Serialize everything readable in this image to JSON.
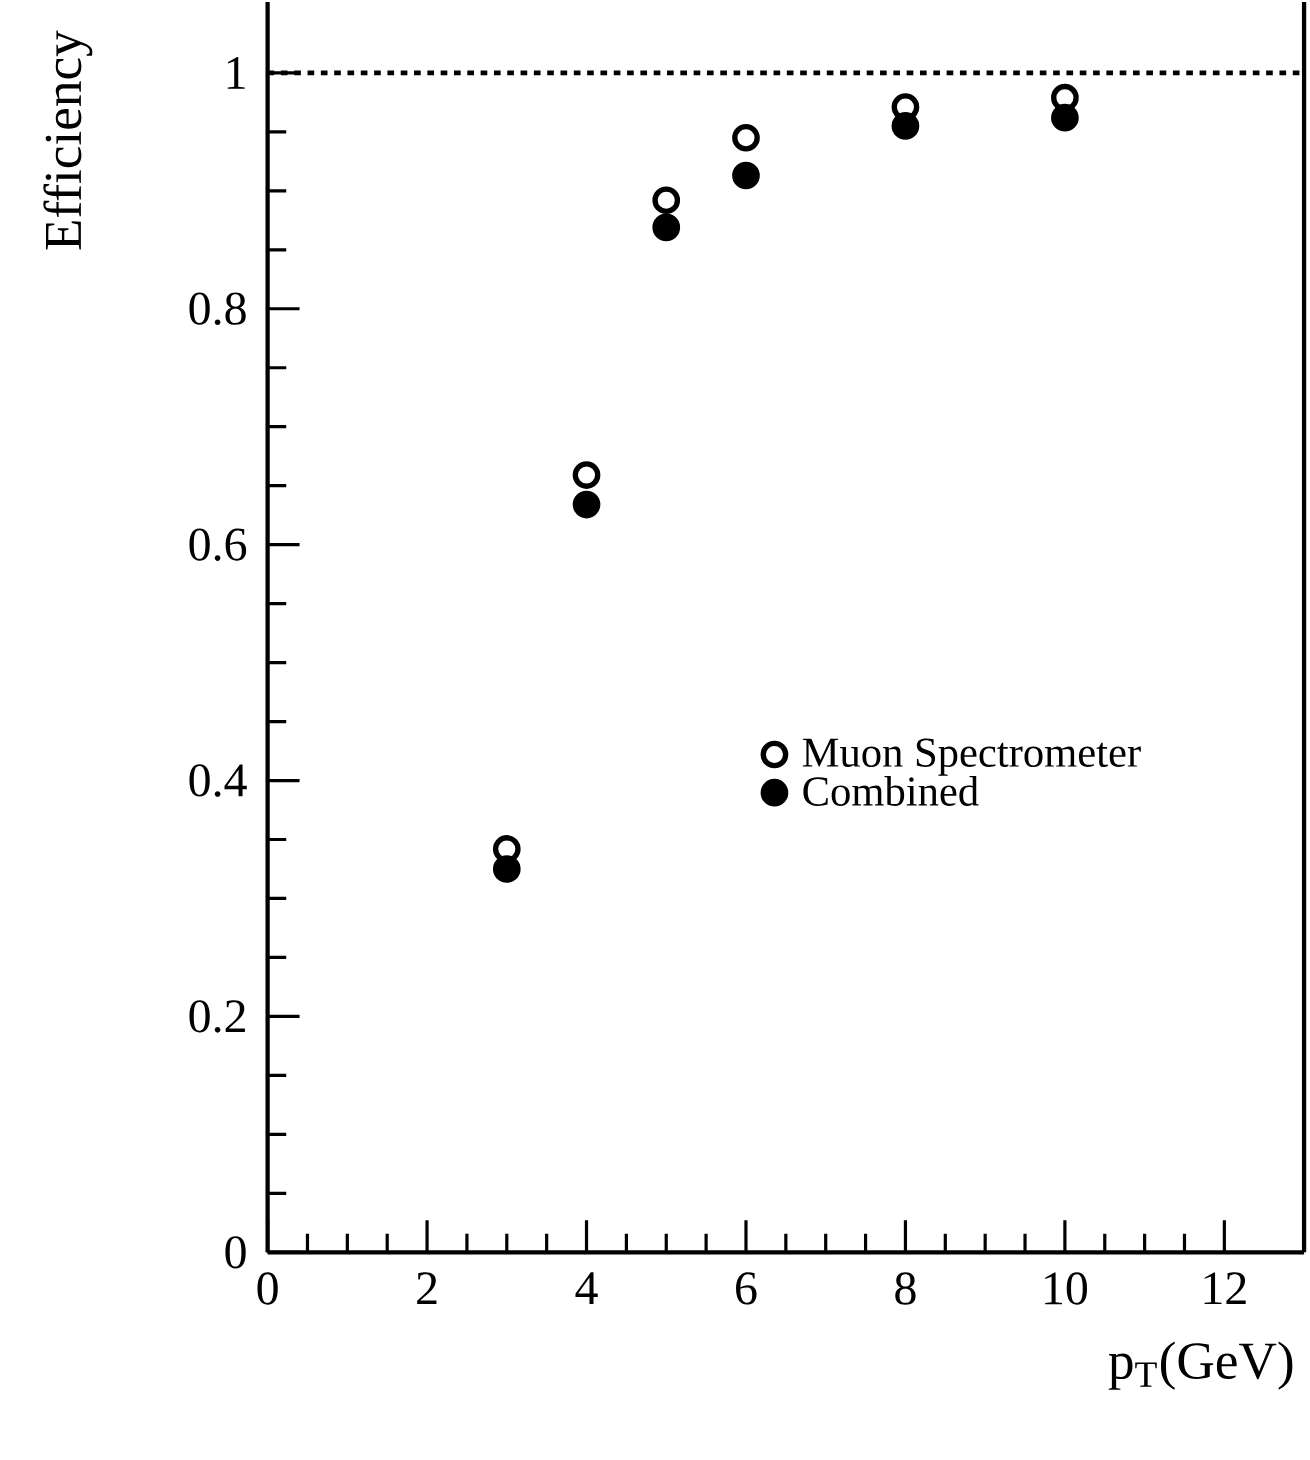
{
  "chart_data": {
    "type": "scatter",
    "xlabel": "p$_{T}$(GeV)",
    "ylabel": "Efficiency",
    "x": [
      3,
      4,
      5,
      6,
      8,
      10
    ],
    "series": [
      {
        "name": "Muon Spectrometer",
        "color": "#000000",
        "values": [
          0.342,
          0.659,
          0.892,
          0.945,
          0.971,
          0.979
        ]
      },
      {
        "name": "Combined",
        "color": "#000000",
        "values": [
          0.325,
          0.634,
          0.869,
          0.913,
          0.955,
          0.962
        ]
      }
    ],
    "xlim": [
      0,
      13
    ],
    "ylim": [
      0,
      1.06
    ],
    "xticks": [
      0,
      2,
      4,
      6,
      8,
      10,
      12
    ],
    "yticks": [
      0,
      0.2,
      0.4,
      0.6,
      0.8,
      1
    ],
    "ref_lines": [
      {
        "axis": "y",
        "value": 1,
        "line_style": "dotted"
      }
    ],
    "marker": "circle",
    "legend": "right",
    "grid": false
  }
}
